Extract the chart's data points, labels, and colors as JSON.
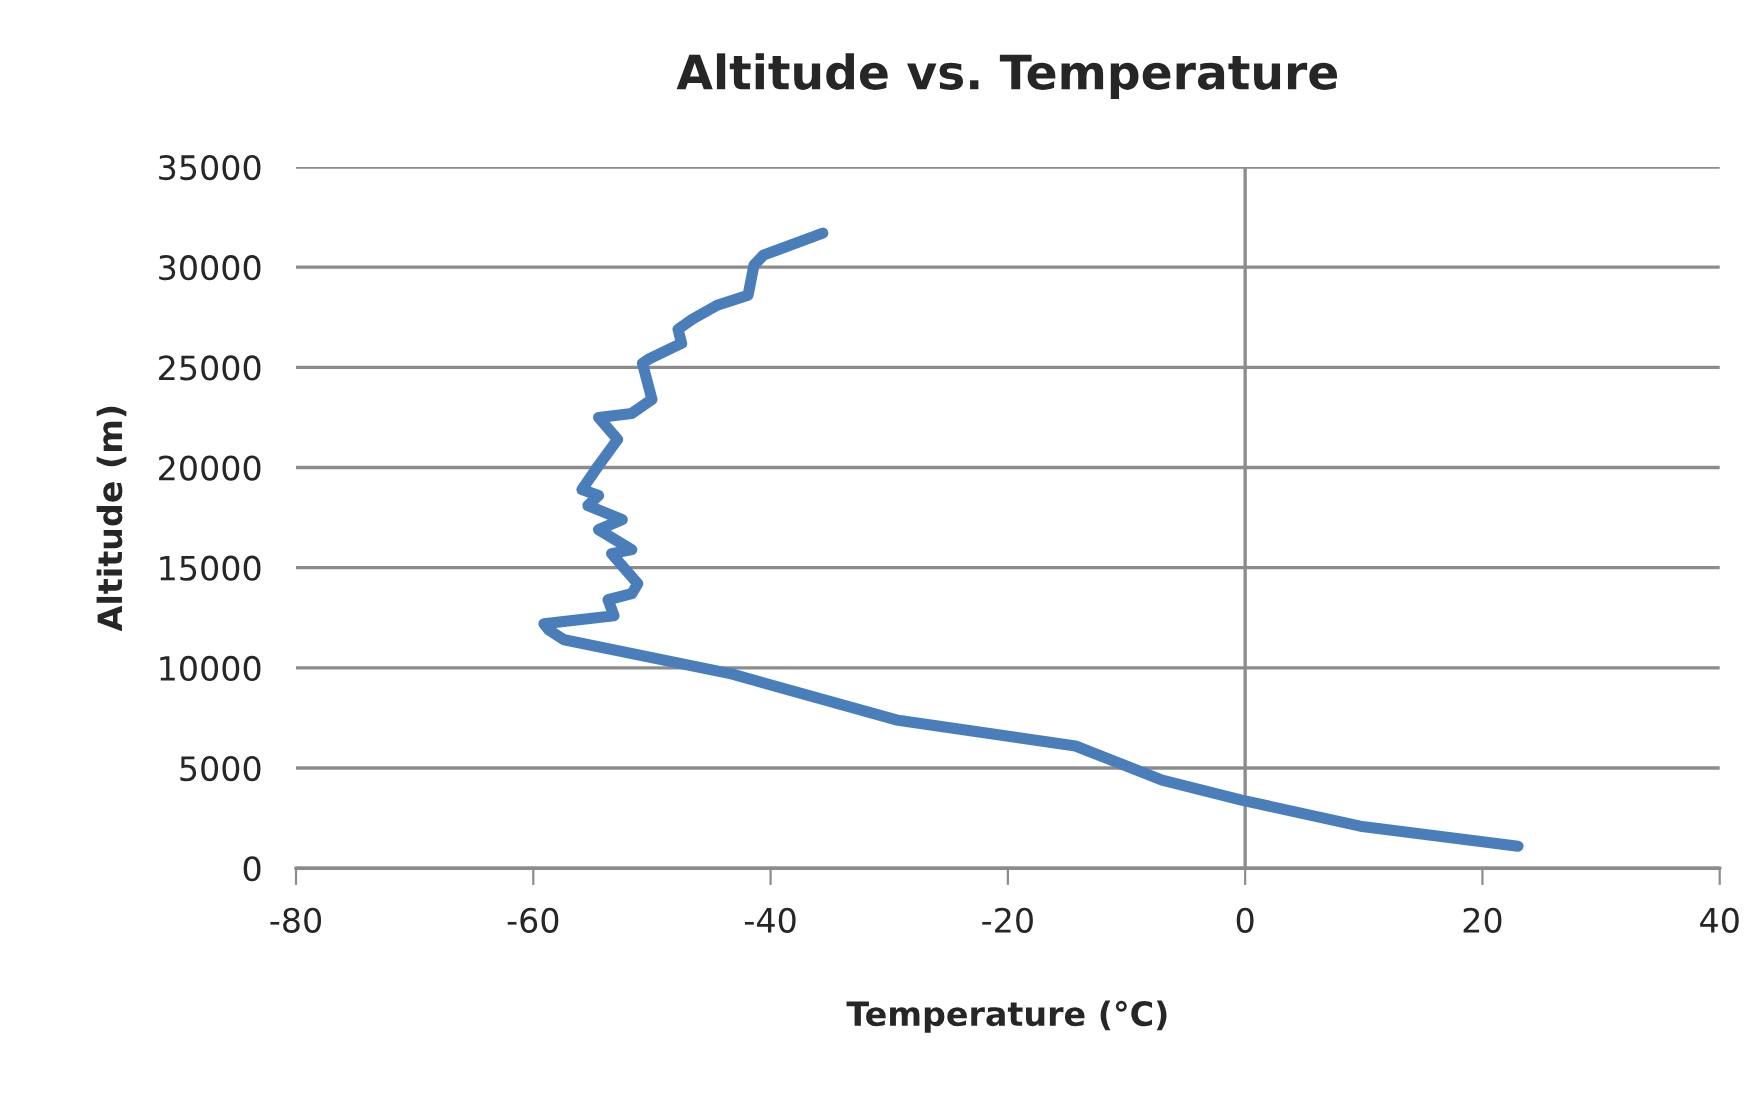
{
  "chart_data": {
    "type": "line",
    "title": "Altitude vs. Temperature",
    "xlabel": "Temperature (°C)",
    "ylabel": "Altitude (m)",
    "series": [
      {
        "color": "#4a7ebb",
        "x": [
          -35.6,
          -40.6,
          -41.4,
          -41.9,
          -44.5,
          -46.6,
          -47.8,
          -47.5,
          -50.3,
          -50.8,
          -50.0,
          -51.7,
          -54.5,
          -52.9,
          -54.5,
          -55.9,
          -54.5,
          -55.4,
          -52.5,
          -54.5,
          -51.7,
          -53.4,
          -51.2,
          -51.7,
          -53.7,
          -53.2,
          -59.1,
          -58.7,
          -57.4,
          -43.3,
          -29.4,
          -14.3,
          -7.0,
          -0.3,
          9.7,
          23.0
        ],
        "values": [
          31700,
          30600,
          30100,
          28600,
          28100,
          27400,
          26900,
          26200,
          25400,
          25200,
          23400,
          22700,
          22500,
          21400,
          20100,
          18900,
          18600,
          18100,
          17400,
          16900,
          15900,
          15700,
          14200,
          13700,
          13400,
          12600,
          12200,
          11900,
          11400,
          9700,
          7400,
          6100,
          4400,
          3400,
          2100,
          1100
        ]
      }
    ],
    "xlim": [
      -80,
      40
    ],
    "xticks": [
      -80,
      -60,
      -40,
      -20,
      0,
      20,
      40
    ],
    "ylim": [
      0,
      35000
    ],
    "yticks": [
      0,
      5000,
      10000,
      15000,
      20000,
      25000,
      30000,
      35000
    ],
    "ref_lines": [
      {
        "axis": "x",
        "value": 0,
        "color": "#8c8c8c"
      }
    ],
    "grid": "y",
    "legend": false,
    "marker": "none",
    "line_style": "solid"
  }
}
